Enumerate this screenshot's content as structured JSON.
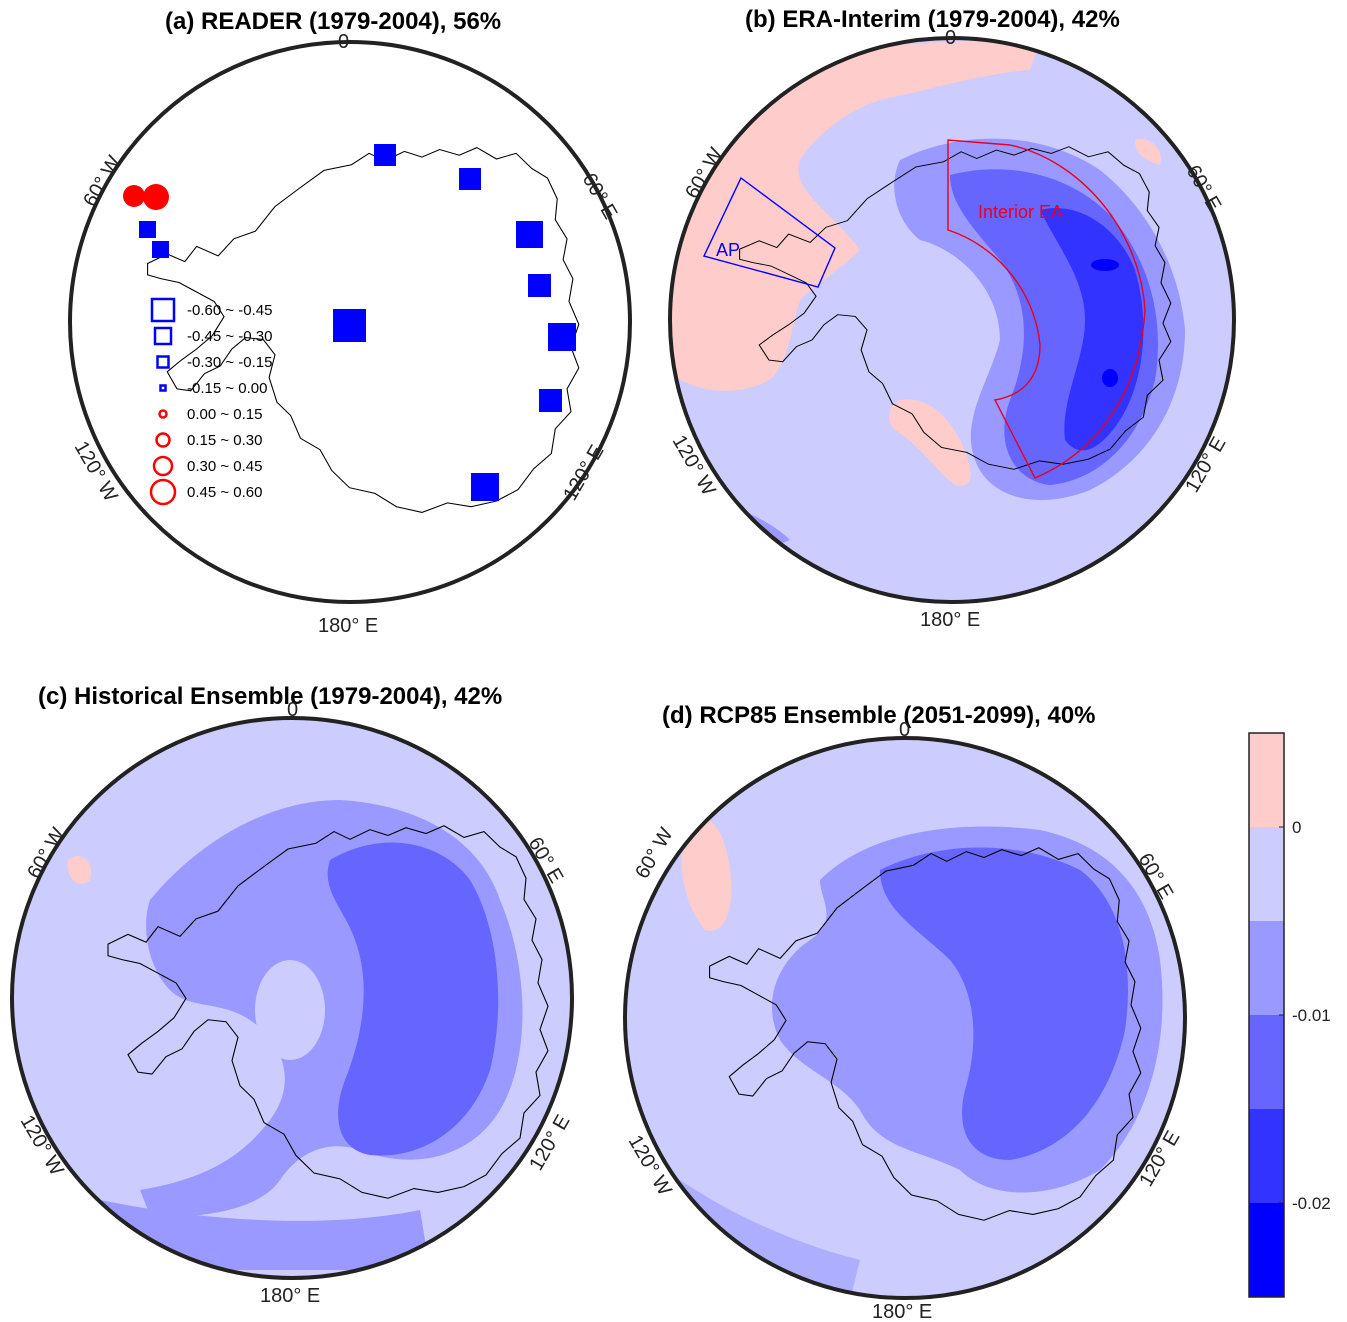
{
  "panels": {
    "a": {
      "title": "(a) READER (1979-2004), 56%"
    },
    "b": {
      "title": "(b) ERA-Interim (1979-2004), 42%"
    },
    "c": {
      "title": "(c) Historical Ensemble (1979-2004), 42%"
    },
    "d": {
      "title": "(d) RCP85 Ensemble (2051-2099), 40%"
    }
  },
  "longitude_labels": {
    "lon_0": "0",
    "lon_60e": "60° E",
    "lon_120e": "120° E",
    "lon_180e": "180° E",
    "lon_60w": "60° W",
    "lon_120w": "120° W"
  },
  "legend_a": {
    "items": [
      {
        "label": "-0.60 ~ -0.45",
        "marker": "square",
        "color": "#0000ff"
      },
      {
        "label": "-0.45 ~ -0.30",
        "marker": "square",
        "color": "#0000ff"
      },
      {
        "label": "-0.30 ~ -0.15",
        "marker": "square",
        "color": "#0000ff"
      },
      {
        "label": "-0.15 ~ 0.00",
        "marker": "square",
        "color": "#0000ff"
      },
      {
        "label": "0.00 ~ 0.15",
        "marker": "circle",
        "color": "#ff0000"
      },
      {
        "label": "0.15 ~ 0.30",
        "marker": "circle",
        "color": "#ff0000"
      },
      {
        "label": "0.30 ~ 0.45",
        "marker": "circle",
        "color": "#ff0000"
      },
      {
        "label": "0.45 ~ 0.60",
        "marker": "circle",
        "color": "#ff0000"
      }
    ]
  },
  "region_boxes": {
    "ap": {
      "label": "AP",
      "color": "#0000ff"
    },
    "interior_ea": {
      "label": "Interior EA",
      "color": "#e8001c"
    }
  },
  "colorbar": {
    "ticks": [
      "0",
      "-0.01",
      "-0.02"
    ],
    "colors": [
      "#ffcccc",
      "#ccccff",
      "#9999ff",
      "#6666ff",
      "#3333ff",
      "#0000ff"
    ]
  },
  "colors": {
    "positive": "#ffcccc",
    "level1": "#ccccff",
    "level2": "#9999ff",
    "level3": "#6666ff",
    "level4": "#3333ff",
    "level5": "#0000ff",
    "station_negative": "#0000ff",
    "station_positive": "#ff0000",
    "frame": "#222222",
    "coastline": "#000000"
  }
}
